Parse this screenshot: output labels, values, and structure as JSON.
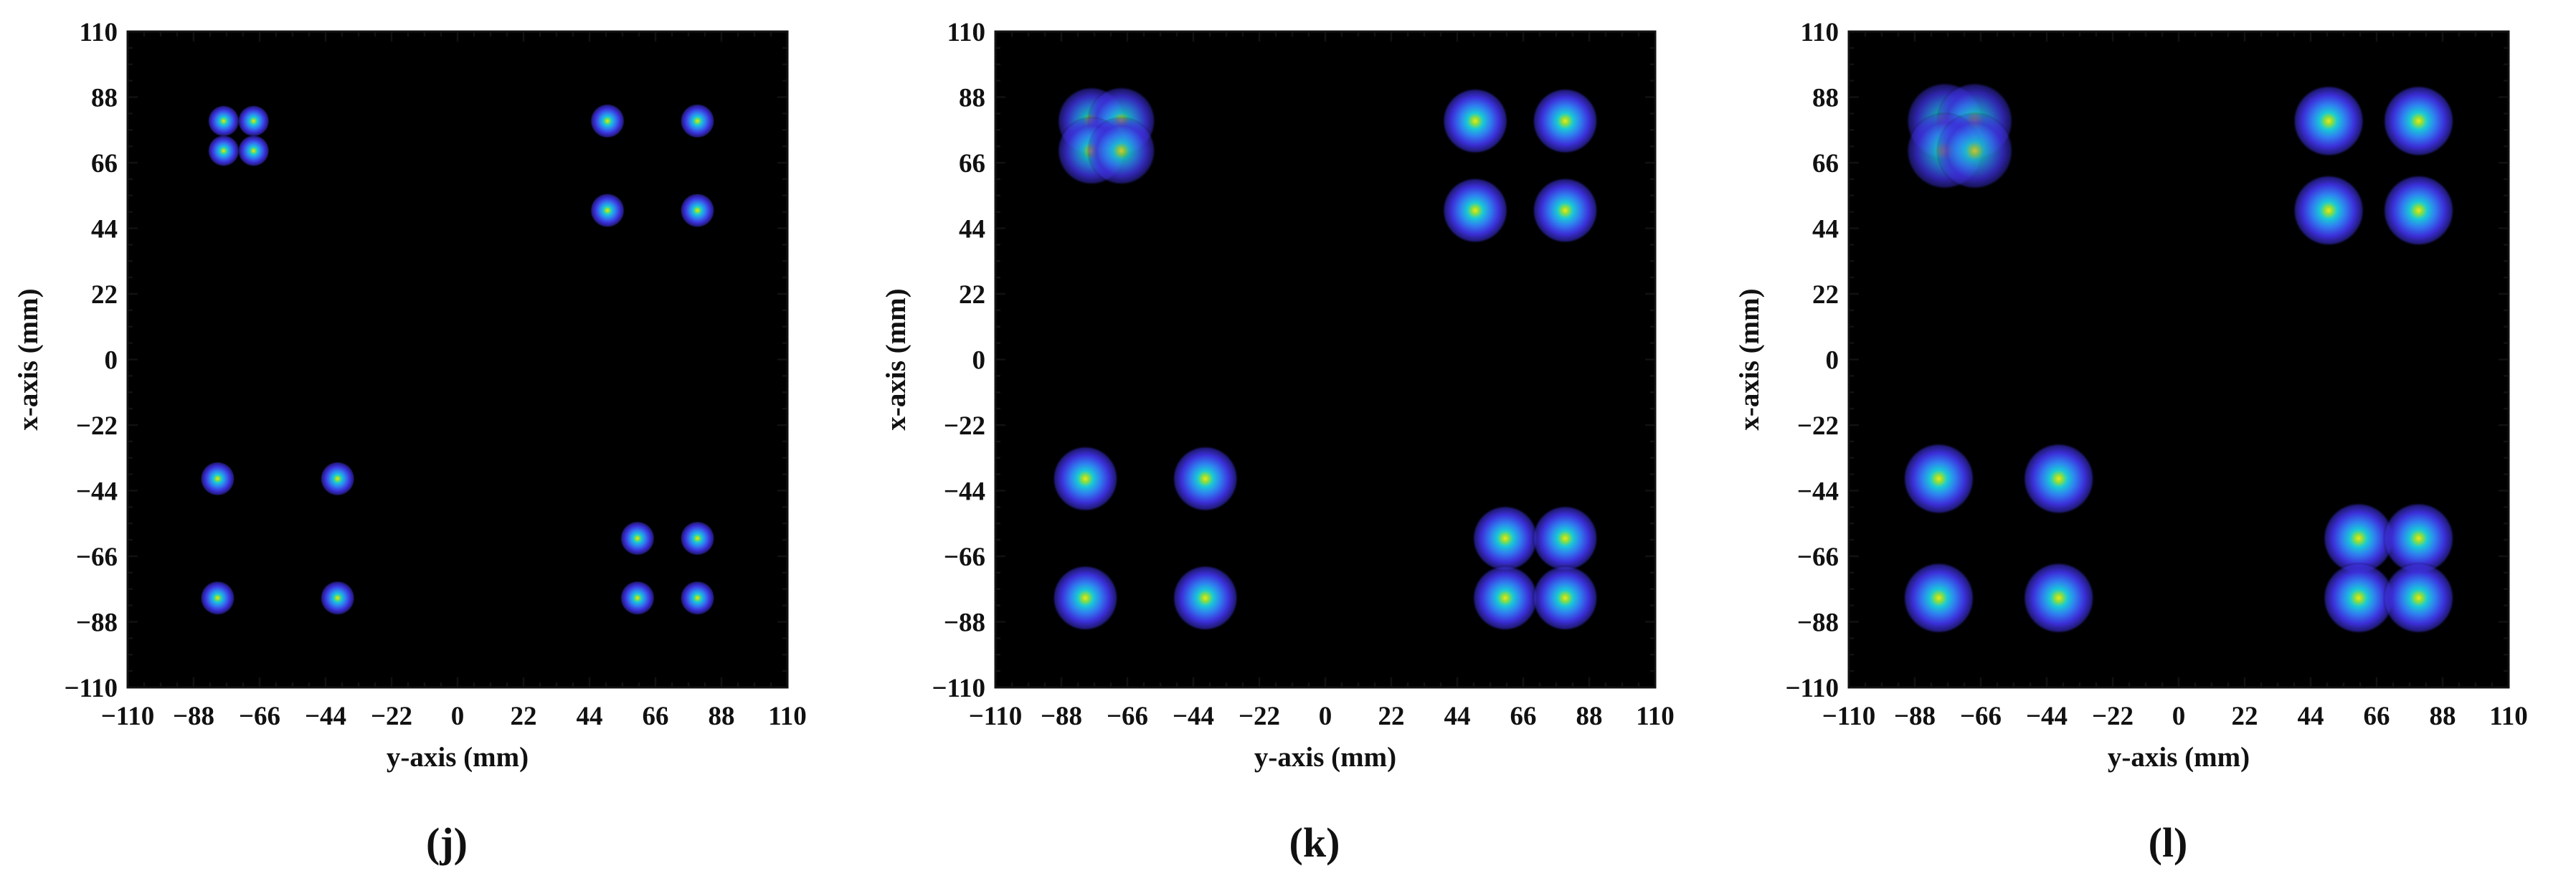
{
  "chart_data": [
    {
      "type": "heatmap",
      "panel_label": "(j)",
      "xlabel": "y-axis (mm)",
      "ylabel": "x-axis (mm)",
      "xlim": [
        -110,
        110
      ],
      "ylim": [
        -110,
        110
      ],
      "xticks": [
        "−110",
        "−88",
        "−66",
        "−44",
        "−22",
        "0",
        "22",
        "44",
        "66",
        "88",
        "110"
      ],
      "yticks": [
        "110",
        "88",
        "66",
        "44",
        "22",
        "0",
        "−22",
        "−44",
        "−66",
        "−88",
        "−110"
      ],
      "background": "#000000",
      "colormap": [
        "#000000",
        "#3b2fd8",
        "#2f7ff0",
        "#19c9d6",
        "#8ee03b",
        "#f2e51a"
      ],
      "spots": [
        {
          "x": -78,
          "y": 80,
          "intensity": 1.0,
          "spread": 2.2
        },
        {
          "x": -68,
          "y": 80,
          "intensity": 1.0,
          "spread": 2.2
        },
        {
          "x": -78,
          "y": 70,
          "intensity": 1.0,
          "spread": 2.2
        },
        {
          "x": -68,
          "y": 70,
          "intensity": 1.0,
          "spread": 2.2
        },
        {
          "x": 50,
          "y": 80,
          "intensity": 1.0,
          "spread": 2.4
        },
        {
          "x": 80,
          "y": 80,
          "intensity": 1.0,
          "spread": 2.4
        },
        {
          "x": 50,
          "y": 50,
          "intensity": 1.0,
          "spread": 2.4
        },
        {
          "x": 80,
          "y": 50,
          "intensity": 1.0,
          "spread": 2.4
        },
        {
          "x": -80,
          "y": -40,
          "intensity": 1.0,
          "spread": 2.4
        },
        {
          "x": -40,
          "y": -40,
          "intensity": 1.0,
          "spread": 2.4
        },
        {
          "x": -80,
          "y": -80,
          "intensity": 1.0,
          "spread": 2.4
        },
        {
          "x": -40,
          "y": -80,
          "intensity": 1.0,
          "spread": 2.4
        },
        {
          "x": 60,
          "y": -60,
          "intensity": 1.0,
          "spread": 2.4
        },
        {
          "x": 80,
          "y": -60,
          "intensity": 1.0,
          "spread": 2.4
        },
        {
          "x": 60,
          "y": -80,
          "intensity": 1.0,
          "spread": 2.4
        },
        {
          "x": 80,
          "y": -80,
          "intensity": 1.0,
          "spread": 2.4
        }
      ]
    },
    {
      "type": "heatmap",
      "panel_label": "(k)",
      "xlabel": "y-axis (mm)",
      "ylabel": "x-axis (mm)",
      "xlim": [
        -110,
        110
      ],
      "ylim": [
        -110,
        110
      ],
      "xticks": [
        "−110",
        "−88",
        "−66",
        "−44",
        "−22",
        "0",
        "22",
        "44",
        "66",
        "88",
        "110"
      ],
      "yticks": [
        "110",
        "88",
        "66",
        "44",
        "22",
        "0",
        "−22",
        "−44",
        "−66",
        "−88",
        "−110"
      ],
      "background": "#000000",
      "colormap": [
        "#000000",
        "#3b2fd8",
        "#2f7ff0",
        "#19c9d6",
        "#8ee03b",
        "#f2e51a"
      ],
      "spots": [
        {
          "x": -78,
          "y": 80,
          "intensity": 0.85,
          "spread": 4.8
        },
        {
          "x": -68,
          "y": 80,
          "intensity": 0.85,
          "spread": 4.8
        },
        {
          "x": -78,
          "y": 70,
          "intensity": 0.85,
          "spread": 4.8
        },
        {
          "x": -68,
          "y": 70,
          "intensity": 0.85,
          "spread": 4.8
        },
        {
          "x": 50,
          "y": 80,
          "intensity": 1.0,
          "spread": 4.6
        },
        {
          "x": 80,
          "y": 80,
          "intensity": 1.0,
          "spread": 4.6
        },
        {
          "x": 50,
          "y": 50,
          "intensity": 1.0,
          "spread": 4.6
        },
        {
          "x": 80,
          "y": 50,
          "intensity": 1.0,
          "spread": 4.6
        },
        {
          "x": -80,
          "y": -40,
          "intensity": 1.0,
          "spread": 4.6
        },
        {
          "x": -40,
          "y": -40,
          "intensity": 1.0,
          "spread": 4.6
        },
        {
          "x": -80,
          "y": -80,
          "intensity": 1.0,
          "spread": 4.6
        },
        {
          "x": -40,
          "y": -80,
          "intensity": 1.0,
          "spread": 4.6
        },
        {
          "x": 60,
          "y": -60,
          "intensity": 1.0,
          "spread": 4.6
        },
        {
          "x": 80,
          "y": -60,
          "intensity": 1.0,
          "spread": 4.6
        },
        {
          "x": 60,
          "y": -80,
          "intensity": 1.0,
          "spread": 4.6
        },
        {
          "x": 80,
          "y": -80,
          "intensity": 1.0,
          "spread": 4.6
        }
      ]
    },
    {
      "type": "heatmap",
      "panel_label": "(l)",
      "xlabel": "y-axis (mm)",
      "ylabel": "x-axis (mm)",
      "xlim": [
        -110,
        110
      ],
      "ylim": [
        -110,
        110
      ],
      "xticks": [
        "−110",
        "−88",
        "−66",
        "−44",
        "−22",
        "0",
        "22",
        "44",
        "66",
        "88",
        "110"
      ],
      "yticks": [
        "110",
        "88",
        "66",
        "44",
        "22",
        "0",
        "−22",
        "−44",
        "−66",
        "−88",
        "−110"
      ],
      "background": "#000000",
      "colormap": [
        "#000000",
        "#3b2fd8",
        "#2f7ff0",
        "#19c9d6",
        "#8ee03b",
        "#f2e51a"
      ],
      "spots": [
        {
          "x": -78,
          "y": 80,
          "intensity": 0.8,
          "spread": 5.4
        },
        {
          "x": -68,
          "y": 80,
          "intensity": 0.8,
          "spread": 5.4
        },
        {
          "x": -78,
          "y": 70,
          "intensity": 0.8,
          "spread": 5.4
        },
        {
          "x": -68,
          "y": 70,
          "intensity": 0.8,
          "spread": 5.4
        },
        {
          "x": 50,
          "y": 80,
          "intensity": 1.0,
          "spread": 5.0
        },
        {
          "x": 80,
          "y": 80,
          "intensity": 1.0,
          "spread": 5.0
        },
        {
          "x": 50,
          "y": 50,
          "intensity": 1.0,
          "spread": 5.0
        },
        {
          "x": 80,
          "y": 50,
          "intensity": 1.0,
          "spread": 5.0
        },
        {
          "x": -80,
          "y": -40,
          "intensity": 1.0,
          "spread": 5.0
        },
        {
          "x": -40,
          "y": -40,
          "intensity": 1.0,
          "spread": 5.0
        },
        {
          "x": -80,
          "y": -80,
          "intensity": 1.0,
          "spread": 5.0
        },
        {
          "x": -40,
          "y": -80,
          "intensity": 1.0,
          "spread": 5.0
        },
        {
          "x": 60,
          "y": -60,
          "intensity": 1.0,
          "spread": 5.0
        },
        {
          "x": 80,
          "y": -60,
          "intensity": 1.0,
          "spread": 5.0
        },
        {
          "x": 60,
          "y": -80,
          "intensity": 1.0,
          "spread": 5.0
        },
        {
          "x": 80,
          "y": -80,
          "intensity": 1.0,
          "spread": 5.0
        }
      ]
    }
  ]
}
